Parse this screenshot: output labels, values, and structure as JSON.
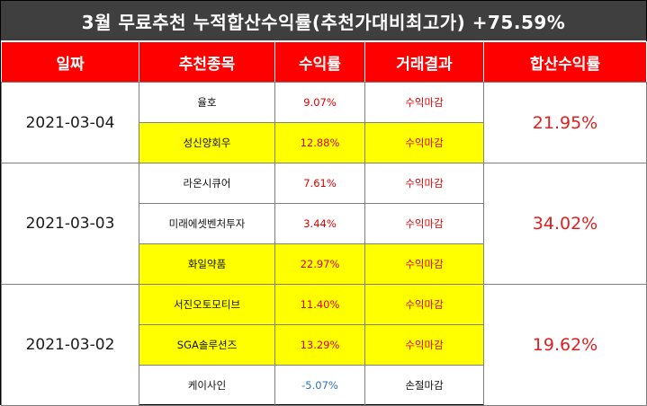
{
  "title": "3월 무료추천 누적합산수익률(추천가대비최고가) +75.59%",
  "colors": {
    "header_bg": "#ff0000",
    "title_bg": "#3f3f3f",
    "highlight": "#ffff00",
    "gain": "#e00000",
    "loss": "#2e74b5"
  },
  "table": {
    "headers": [
      "일짜",
      "추천종목",
      "수익률",
      "거래결과",
      "합산수익률"
    ],
    "groups": [
      {
        "date": "2021-03-04",
        "total": "21.95%",
        "rows": [
          {
            "stock": "율호",
            "rate": "9.07%",
            "result": "수익마감",
            "highlight": false,
            "negative": false
          },
          {
            "stock": "성신양회우",
            "rate": "12.88%",
            "result": "수익마감",
            "highlight": true,
            "negative": false
          }
        ]
      },
      {
        "date": "2021-03-03",
        "total": "34.02%",
        "rows": [
          {
            "stock": "라온시큐어",
            "rate": "7.61%",
            "result": "수익마감",
            "highlight": false,
            "negative": false
          },
          {
            "stock": "미래에셋벤처투자",
            "rate": "3.44%",
            "result": "수익마감",
            "highlight": false,
            "negative": false
          },
          {
            "stock": "화일약품",
            "rate": "22.97%",
            "result": "수익마감",
            "highlight": true,
            "negative": false
          }
        ]
      },
      {
        "date": "2021-03-02",
        "total": "19.62%",
        "rows": [
          {
            "stock": "서진오토모티브",
            "rate": "11.40%",
            "result": "수익마감",
            "highlight": true,
            "negative": false
          },
          {
            "stock": "SGA솔루션즈",
            "rate": "13.29%",
            "result": "수익마감",
            "highlight": true,
            "negative": false
          },
          {
            "stock": "케이사인",
            "rate": "-5.07%",
            "result": "손절마감",
            "highlight": false,
            "negative": true
          }
        ]
      }
    ]
  }
}
